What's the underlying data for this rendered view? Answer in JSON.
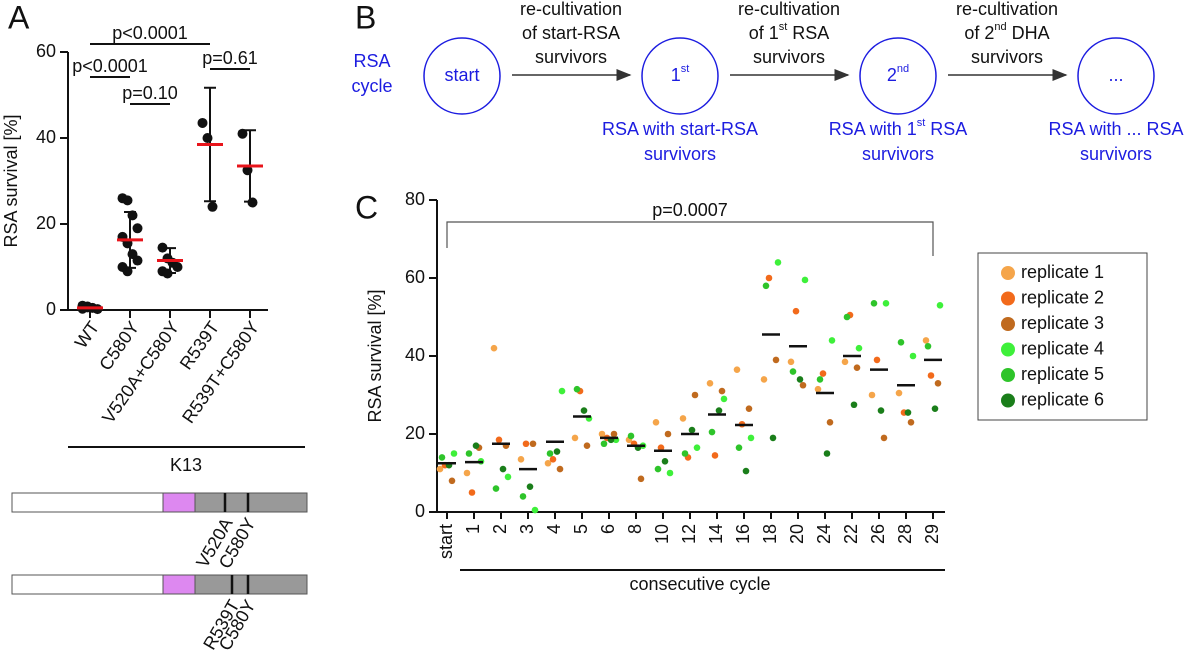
{
  "chart_data": [
    {
      "panel": "A",
      "type": "dot",
      "ylabel": "RSA survival [%]",
      "categories": [
        "WT",
        "C580Y",
        "V520A+C580Y",
        "R539T",
        "R539T+C580Y"
      ],
      "points": [
        [
          0.3,
          0.8,
          0.5,
          0.2,
          1.0,
          0.6
        ],
        [
          26,
          25.5,
          22,
          19,
          17,
          15.5,
          13,
          11.5,
          10,
          9
        ],
        [
          14.5,
          12,
          11,
          10,
          9,
          8.5
        ],
        [
          43.5,
          40,
          24
        ],
        [
          41,
          32.5,
          25
        ]
      ],
      "means": [
        0.5,
        16.3,
        11.5,
        38.5,
        33.5
      ],
      "sd": [
        0.3,
        6.5,
        2.9,
        13.2,
        8.3
      ],
      "point_color": "#111111",
      "mean_color": "#e8141b",
      "ylim": [
        0,
        60
      ],
      "yticks": [
        0,
        20,
        40,
        60
      ],
      "comparisons": [
        "p<0.0001",
        "p<0.0001",
        "p=0.10",
        "p=0.61"
      ],
      "group_label": "K13",
      "constructs": [
        {
          "labels": [
            "V520A",
            "C580Y"
          ]
        },
        {
          "labels": [
            "R539T",
            "C580Y"
          ]
        }
      ]
    },
    {
      "panel": "C",
      "type": "strip",
      "ylabel": "RSA survival [%]",
      "categories": [
        "start",
        "1",
        "2",
        "3",
        "4",
        "5",
        "6",
        "8",
        "10",
        "12",
        "14",
        "16",
        "18",
        "20",
        "24",
        "22",
        "26",
        "28",
        "29"
      ],
      "series": [
        {
          "name": "replicate 1",
          "color": "#f5a54a",
          "values": [
            11,
            10,
            42,
            13.5,
            12.5,
            19,
            20,
            18.5,
            23,
            24,
            33,
            36.5,
            34,
            38.5,
            31.5,
            38.5,
            30,
            30.5,
            44
          ]
        },
        {
          "name": "replicate 2",
          "color": "#f26a1b",
          "values": [
            12,
            5,
            18.5,
            17.5,
            13.5,
            31,
            19,
            17.5,
            16.5,
            14,
            14.5,
            22.5,
            60,
            51.5,
            35.5,
            50.5,
            39,
            25.5,
            35
          ]
        },
        {
          "name": "replicate 3",
          "color": "#c06a1e",
          "values": [
            8,
            16.5,
            17,
            17.5,
            11,
            17,
            20,
            8.5,
            20,
            30,
            31,
            26.5,
            39,
            32.5,
            23,
            37,
            19,
            23,
            33
          ]
        },
        {
          "name": "replicate 4",
          "color": "#3ef03a",
          "values": [
            15,
            13,
            9,
            0.5,
            31,
            24,
            18.5,
            17,
            10,
            16.5,
            29,
            19,
            64,
            59.5,
            44,
            42,
            53.5,
            40,
            53
          ]
        },
        {
          "name": "replicate 5",
          "color": "#2ec42a",
          "values": [
            14,
            15,
            6,
            4,
            15,
            31.5,
            17.5,
            19.5,
            11,
            15,
            20.5,
            16.5,
            58,
            36,
            34,
            50,
            53.5,
            43.5,
            42.5
          ]
        },
        {
          "name": "replicate 6",
          "color": "#1a7e1a",
          "values": [
            12,
            17,
            11,
            6.5,
            15.5,
            26,
            18.5,
            16.5,
            13,
            21,
            26,
            10.5,
            19,
            34,
            15,
            27.5,
            26,
            25.5,
            26.5
          ]
        }
      ],
      "means": [
        12.5,
        12.8,
        17.5,
        11,
        18,
        24.5,
        19,
        17,
        15.7,
        20,
        25,
        22.3,
        45.5,
        42.5,
        30.5,
        40,
        36.5,
        32.5,
        39
      ],
      "mean_color": "#111111",
      "ylim": [
        0,
        80
      ],
      "yticks": [
        0,
        20,
        40,
        60,
        80
      ],
      "annotation": "p=0.0007",
      "xlabel": "consecutive cycle",
      "legend": "right"
    }
  ],
  "diagram": {
    "panel": "B",
    "title_lines": [
      "RSA",
      "cycle"
    ],
    "nodes": [
      {
        "label": [
          {
            "text": "start"
          }
        ],
        "caption": []
      },
      {
        "label": [
          {
            "text": "1"
          },
          {
            "sup": "st"
          }
        ],
        "caption": [
          [
            {
              "text": "RSA with start-RSA"
            }
          ],
          [
            {
              "text": "survivors"
            }
          ]
        ]
      },
      {
        "label": [
          {
            "text": "2"
          },
          {
            "sup": "nd"
          }
        ],
        "caption": [
          [
            {
              "text": "RSA with 1"
            },
            {
              "sup": "st"
            },
            {
              "text": " RSA"
            }
          ],
          [
            {
              "text": "survivors"
            }
          ]
        ]
      },
      {
        "label": [
          {
            "text": "..."
          }
        ],
        "caption": [
          [
            {
              "text": "RSA with ... RSA"
            }
          ],
          [
            {
              "text": "survivors"
            }
          ]
        ]
      }
    ],
    "arrows": [
      [
        [
          {
            "text": "re-cultivation"
          }
        ],
        [
          {
            "text": "of start-RSA"
          }
        ],
        [
          {
            "text": "survivors"
          }
        ]
      ],
      [
        [
          {
            "text": "re-cultivation"
          }
        ],
        [
          {
            "text": "of 1"
          },
          {
            "sup": "st"
          },
          {
            "text": " RSA"
          }
        ],
        [
          {
            "text": "survivors"
          }
        ]
      ],
      [
        [
          {
            "text": "re-cultivation"
          }
        ],
        [
          {
            "text": "of 2"
          },
          {
            "sup": "nd"
          },
          {
            "text": " DHA"
          }
        ],
        [
          {
            "text": "survivors"
          }
        ]
      ]
    ]
  }
}
